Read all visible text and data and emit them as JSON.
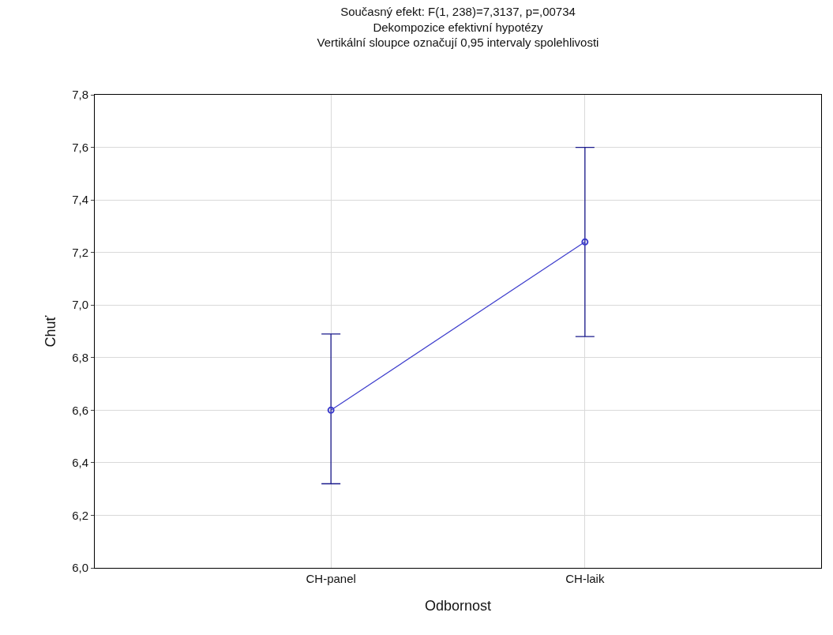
{
  "chart_data": {
    "type": "line",
    "title": "Současný efekt: F(1, 238)=7,3137, p=,00734",
    "subtitle": "Dekompozice efektivní hypotézy",
    "annotations": [
      "Vertikální sloupce označují 0,95 intervaly spolehlivosti"
    ],
    "xlabel": "Odbornost",
    "ylabel": "Chuť",
    "categories": [
      "CH-panel",
      "CH-laik"
    ],
    "series": [
      {
        "color": "#3c3ccc",
        "values": [
          6.6,
          7.24
        ],
        "errors": [
          [
            6.32,
            6.89
          ],
          [
            6.88,
            7.6
          ]
        ]
      }
    ],
    "ylim": [
      6.0,
      7.8
    ],
    "yticks": [
      {
        "value": 6.0,
        "label": "6,0"
      },
      {
        "value": 6.2,
        "label": "6,2"
      },
      {
        "value": 6.4,
        "label": "6,4"
      },
      {
        "value": 6.6,
        "label": "6,6"
      },
      {
        "value": 6.8,
        "label": "6,8"
      },
      {
        "value": 7.0,
        "label": "7,0"
      },
      {
        "value": 7.2,
        "label": "7,2"
      },
      {
        "value": 7.4,
        "label": "7,4"
      },
      {
        "value": 7.6,
        "label": "7,6"
      },
      {
        "value": 7.8,
        "label": "7,8"
      }
    ],
    "grid": true,
    "marker": "circle",
    "line_style": "solid"
  }
}
